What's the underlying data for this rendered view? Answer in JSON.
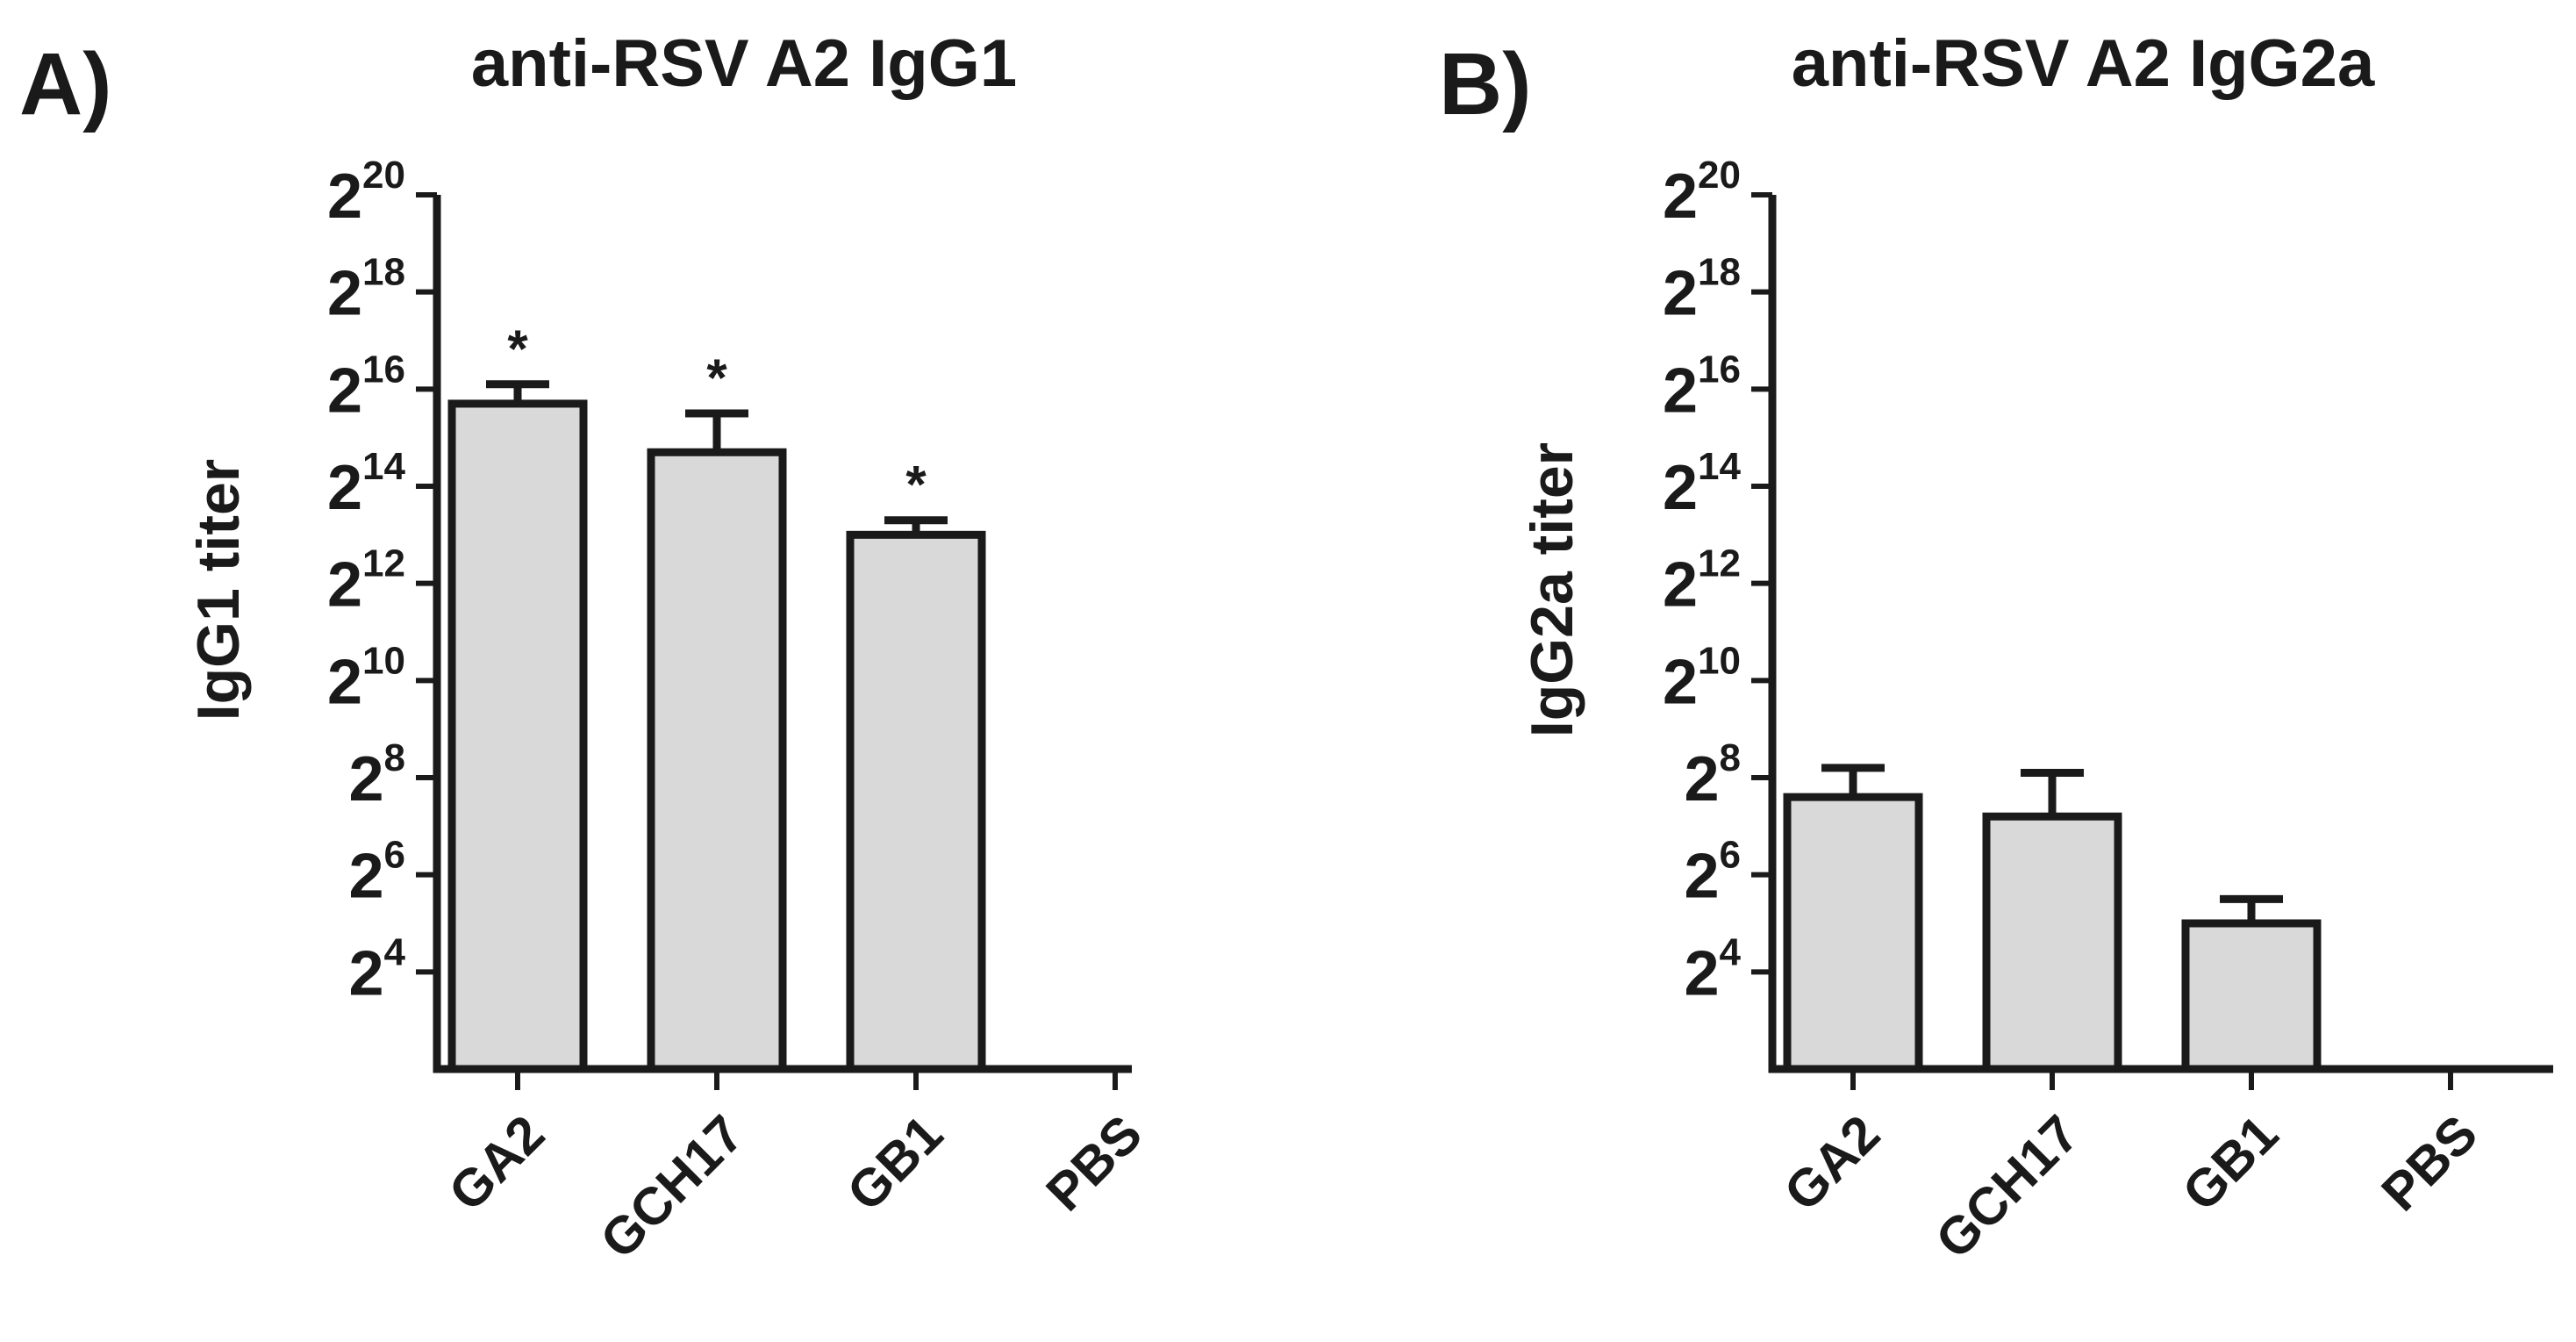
{
  "figure": {
    "panels": [
      {
        "label": "A)"
      },
      {
        "label": "B)"
      }
    ]
  },
  "chart_data": [
    {
      "type": "bar",
      "title": "anti-RSV A2 IgG1",
      "ylabel": "IgG1 titer",
      "xlabel": "",
      "yscale": "log2",
      "ylim_exp": [
        2,
        20
      ],
      "y_tick_base": "2",
      "y_tick_exponents": [
        "4",
        "6",
        "8",
        "10",
        "12",
        "14",
        "16",
        "18",
        "20"
      ],
      "categories": [
        "GA2",
        "GCH17",
        "GB1",
        "PBS"
      ],
      "values_exp": [
        15.7,
        14.7,
        13.0,
        null
      ],
      "errors_exp": [
        0.4,
        0.8,
        0.3,
        null
      ],
      "significance": [
        "*",
        "*",
        "*",
        ""
      ],
      "bar_color": "#d9d9d9",
      "line_color": "#1a1a1a"
    },
    {
      "type": "bar",
      "title": "anti-RSV A2 IgG2a",
      "ylabel": "IgG2a titer",
      "xlabel": "",
      "yscale": "log2",
      "ylim_exp": [
        2,
        20
      ],
      "y_tick_base": "2",
      "y_tick_exponents": [
        "4",
        "6",
        "8",
        "10",
        "12",
        "14",
        "16",
        "18",
        "20"
      ],
      "categories": [
        "GA2",
        "GCH17",
        "GB1",
        "PBS"
      ],
      "values_exp": [
        7.6,
        7.2,
        5.0,
        null
      ],
      "errors_exp": [
        0.6,
        0.9,
        0.5,
        null
      ],
      "significance": [
        "",
        "",
        "",
        ""
      ],
      "bar_color": "#d9d9d9",
      "line_color": "#1a1a1a"
    }
  ]
}
